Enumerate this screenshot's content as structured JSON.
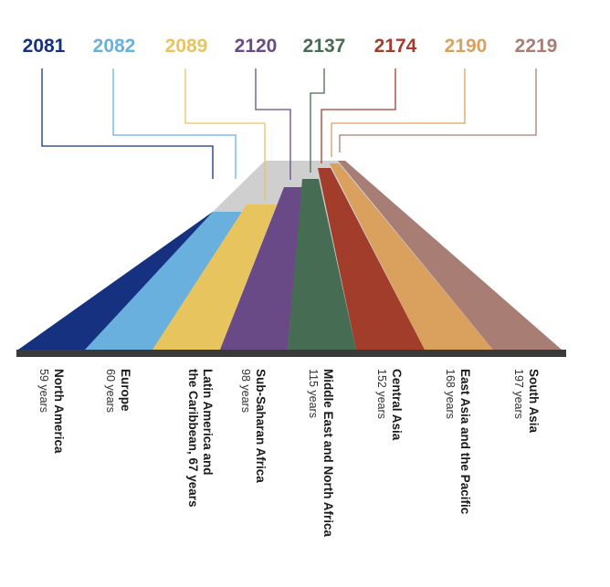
{
  "regions": [
    {
      "year": "2081",
      "name_lines": [
        "North America"
      ],
      "duration": "59 years",
      "color": "#16317f"
    },
    {
      "year": "2082",
      "name_lines": [
        "Europe"
      ],
      "duration": "60 years",
      "color": "#6ab0df"
    },
    {
      "year": "2089",
      "name_lines": [
        "Latin America and",
        "the Caribbean, 67 years"
      ],
      "duration": "",
      "color": "#e8c45e"
    },
    {
      "year": "2120",
      "name_lines": [
        "Sub-Saharan Africa"
      ],
      "duration": "98 years",
      "color": "#6a4a86"
    },
    {
      "year": "2137",
      "name_lines": [
        "Middle East and North Africa"
      ],
      "duration": "115 years",
      "color": "#466c53"
    },
    {
      "year": "2174",
      "name_lines": [
        "Central Asia"
      ],
      "duration": "152 years",
      "color": "#a23d2c"
    },
    {
      "year": "2190",
      "name_lines": [
        "East Asia and the Pacific"
      ],
      "duration": "168 years",
      "color": "#d9a05e"
    },
    {
      "year": "2219",
      "name_lines": [
        "South Asia"
      ],
      "duration": "197 years",
      "color": "#a87d74"
    }
  ]
}
